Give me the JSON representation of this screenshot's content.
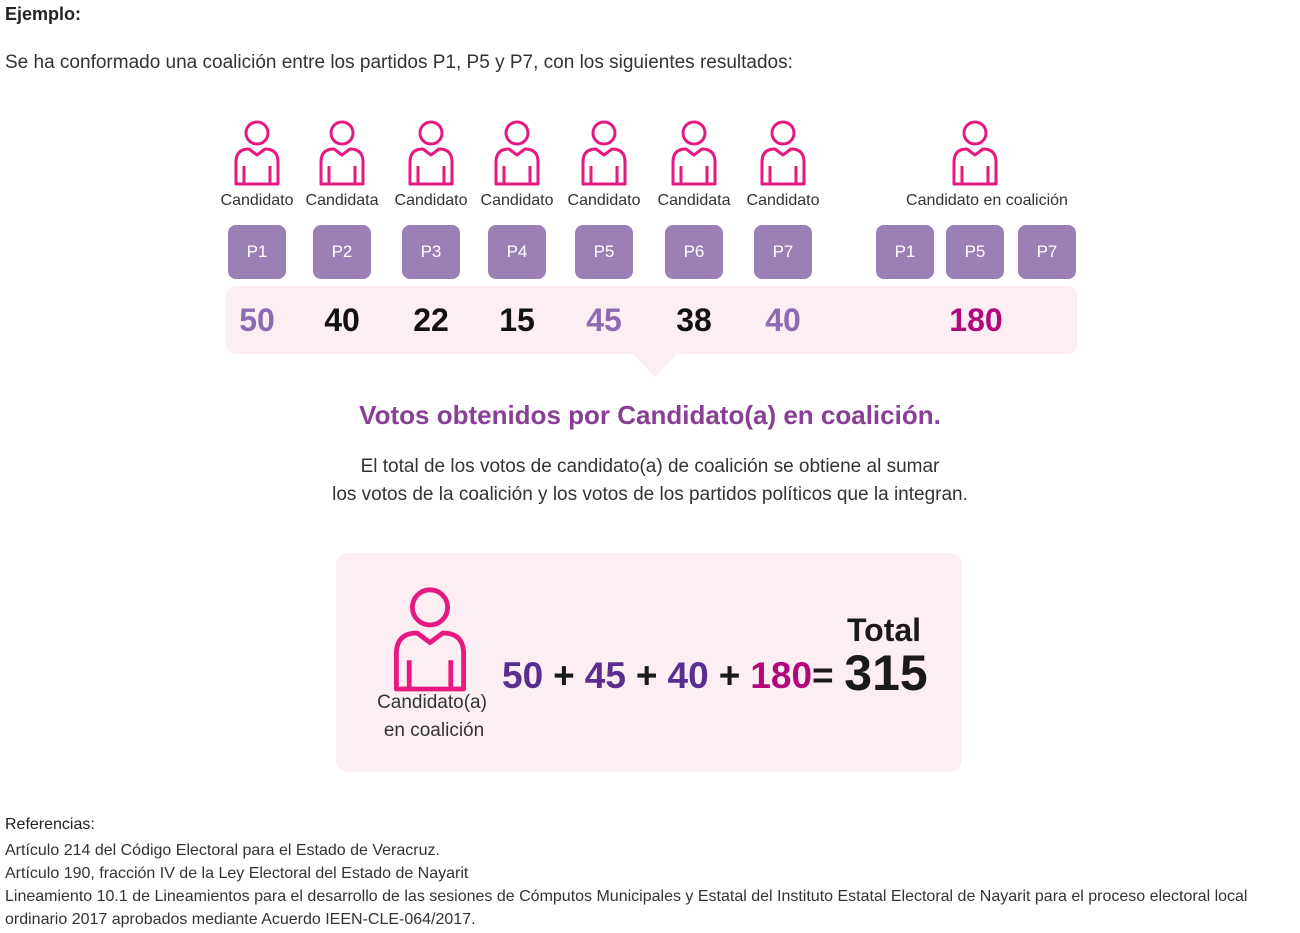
{
  "heading": "Ejemplo:",
  "intro": "Se ha conformado una coalición entre los partidos P1, P5 y P7, con los siguientes resultados:",
  "candidates": [
    {
      "role": "Candidato",
      "party": "P1",
      "votes": 50
    },
    {
      "role": "Candidata",
      "party": "P2",
      "votes": 40
    },
    {
      "role": "Candidato",
      "party": "P3",
      "votes": 22
    },
    {
      "role": "Candidato",
      "party": "P4",
      "votes": 15
    },
    {
      "role": "Candidato",
      "party": "P5",
      "votes": 45
    },
    {
      "role": "Candidata",
      "party": "P6",
      "votes": 38
    },
    {
      "role": "Candidato",
      "party": "P7",
      "votes": 40
    }
  ],
  "coalition": {
    "role": "Candidato en coalición",
    "parties": [
      "P1",
      "P5",
      "P7"
    ],
    "votes": 180
  },
  "section": {
    "title": "Votos obtenidos por Candidato(a) en coalición.",
    "description": [
      "El total de los votos de candidato(a) de coalición se obtiene al sumar",
      "los votos de la coalición y los votos de los partidos políticos que la integran."
    ]
  },
  "formula": {
    "person_label": [
      "Candidato(a)",
      "en coalición"
    ],
    "terms": [
      50,
      45,
      40,
      180
    ],
    "operators": [
      "+",
      "+",
      "+",
      "="
    ],
    "total_label": "Total",
    "total": 315
  },
  "references": {
    "title": "Referencias:",
    "items": [
      "Artículo 214 del Código Electoral para el Estado de Veracruz.",
      "Artículo 190, fracción IV de la Ley Electoral del Estado de Nayarit",
      "Lineamiento 10.1 de Lineamientos para el desarrollo de las sesiones de Cómputos Municipales y Estatal del Instituto Estatal Electoral de Nayarit para el proceso electoral local ordinario 2017 aprobados mediante Acuerdo IEEN-CLE-064/2017."
    ]
  }
}
